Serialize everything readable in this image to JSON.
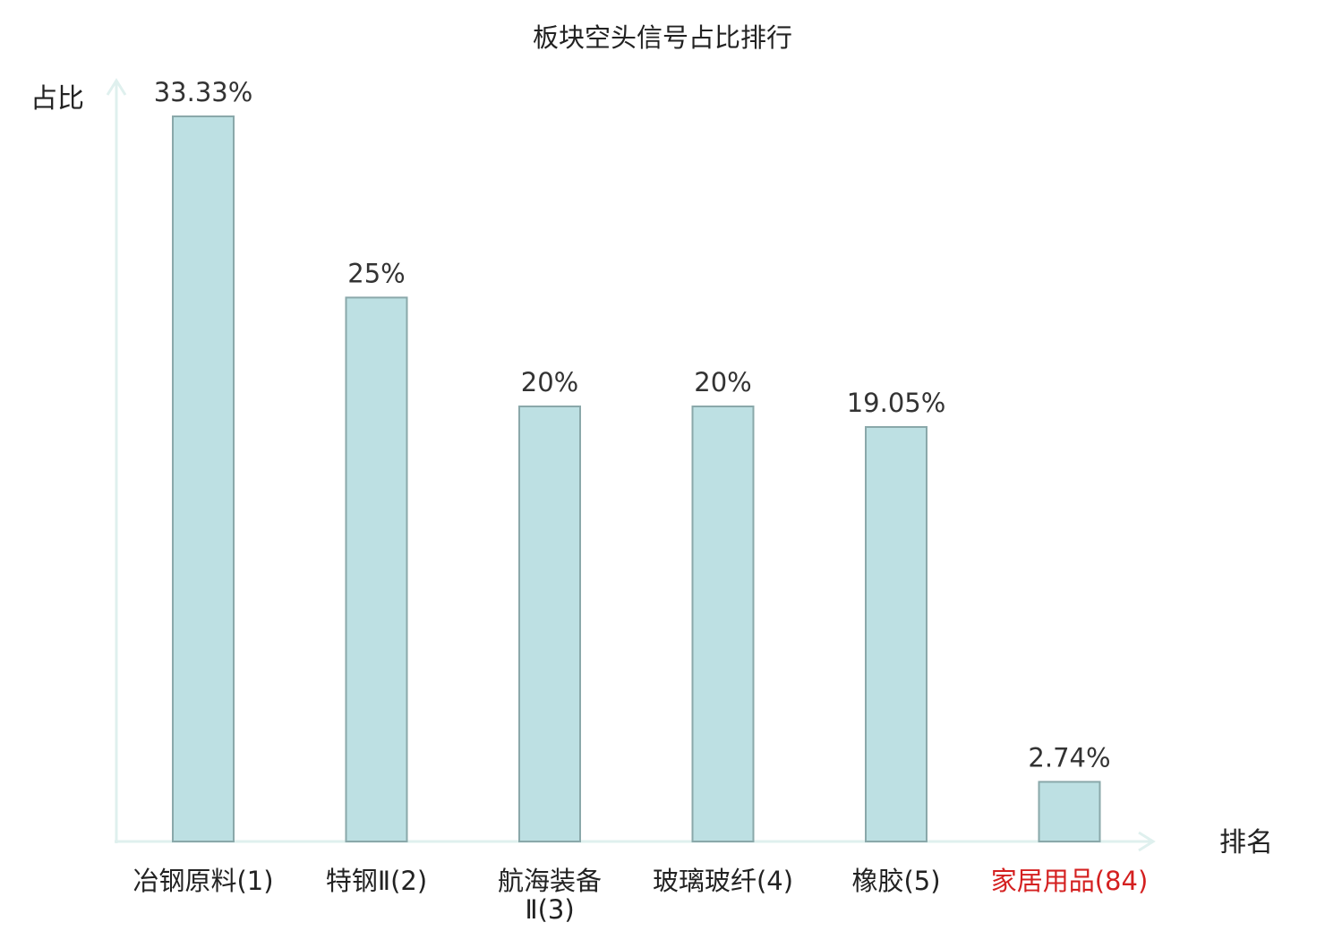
{
  "chart_data": {
    "type": "bar",
    "title": "板块空头信号占比排行",
    "ylabel": "占比",
    "xlabel": "排名",
    "ylim": [
      0,
      35
    ],
    "grid": false,
    "categories": [
      {
        "name": "冶钢原料",
        "rank": "(1)",
        "lines": [
          "冶钢原料(1)"
        ]
      },
      {
        "name": "特钢Ⅱ",
        "rank": "(2)",
        "lines": [
          "特钢Ⅱ(2)"
        ]
      },
      {
        "name": "航海装备Ⅱ",
        "rank": "(3)",
        "lines": [
          "航海装备",
          "Ⅱ(3)"
        ]
      },
      {
        "name": "玻璃玻纤",
        "rank": "(4)",
        "lines": [
          "玻璃玻纤(4)"
        ]
      },
      {
        "name": "橡胶",
        "rank": "(5)",
        "lines": [
          "橡胶(5)"
        ]
      },
      {
        "name": "家居用品",
        "rank": "(84)",
        "lines": [
          "家居用品(84)"
        ],
        "highlight": true
      }
    ],
    "values": [
      33.33,
      25,
      20,
      20,
      19.05,
      2.74
    ],
    "value_labels": [
      "33.33%",
      "25%",
      "20%",
      "20%",
      "19.05%",
      "2.74%"
    ]
  },
  "colors": {
    "bar_fill": "#bde0e3",
    "bar_stroke": "#8aa8aa",
    "axis": "#dff0ee",
    "text": "#222222",
    "highlight_text": "#d42020"
  }
}
